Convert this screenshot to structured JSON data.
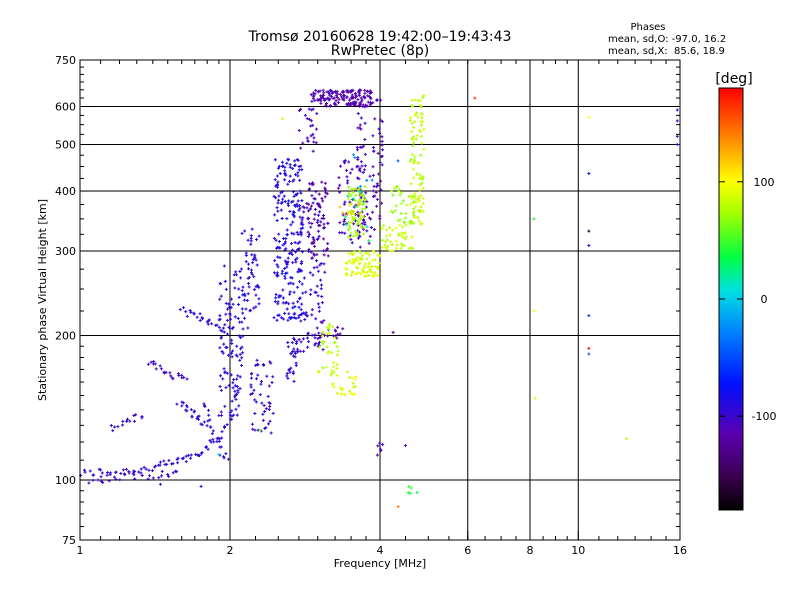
{
  "chart_data": {
    "type": "scatter",
    "title": "Tromsø 20160628 19:42:00–19:43:43",
    "subtitle": "RwPretec (8p)",
    "xlabel": "Frequency [MHz]",
    "ylabel": "Stationary phase Virtual Height [km]",
    "x_scale": "log",
    "y_scale": "log",
    "xlim": [
      1,
      16
    ],
    "ylim": [
      75,
      750
    ],
    "x_major_ticks": [
      1,
      2,
      4,
      6,
      8,
      10,
      16
    ],
    "x_tick_labels": [
      "1",
      "2",
      "4",
      "6",
      "8",
      "10",
      "16"
    ],
    "y_major_ticks": [
      75,
      100,
      200,
      300,
      400,
      500,
      600,
      750
    ],
    "y_tick_labels": [
      "75",
      "100",
      "200",
      "300",
      "400",
      "500",
      "600",
      "750"
    ],
    "grid": true,
    "phases_legend": {
      "title": "Phases",
      "line_o": "mean, sd,O: -97.0, 16.2",
      "line_x": "mean, sd,X:  85.6, 18.9"
    },
    "colorbar": {
      "label": "[deg]",
      "min": -180,
      "max": 180,
      "ticks": [
        100,
        0,
        -100
      ],
      "tick_labels": [
        "100",
        "0",
        "-100"
      ],
      "colormap": "rainbow: black -> purple -> blue -> cyan -> green -> yellow -> orange -> red"
    },
    "point_groups": [
      {
        "kind": "curve",
        "phase": -95,
        "pts": [
          [
            1.0,
            103
          ],
          [
            1.1,
            104
          ],
          [
            1.2,
            104
          ],
          [
            1.3,
            105
          ],
          [
            1.4,
            106
          ],
          [
            1.5,
            108
          ],
          [
            1.6,
            110
          ],
          [
            1.7,
            113
          ],
          [
            1.8,
            117
          ],
          [
            1.9,
            123
          ],
          [
            2.0,
            135
          ],
          [
            2.05,
            150
          ],
          [
            2.1,
            175
          ],
          [
            2.12,
            200
          ],
          [
            2.15,
            240
          ],
          [
            2.2,
            280
          ],
          [
            2.25,
            300
          ]
        ]
      },
      {
        "kind": "curve",
        "phase": -100,
        "pts": [
          [
            1.05,
            100
          ],
          [
            1.15,
            101
          ],
          [
            1.3,
            102
          ],
          [
            1.45,
            103
          ],
          [
            1.6,
            104
          ]
        ]
      },
      {
        "kind": "curve",
        "phase": -98,
        "pts": [
          [
            1.15,
            128
          ],
          [
            1.25,
            132
          ],
          [
            1.35,
            138
          ]
        ]
      },
      {
        "kind": "curve",
        "phase": -100,
        "pts": [
          [
            1.38,
            175
          ],
          [
            1.45,
            170
          ],
          [
            1.55,
            165
          ],
          [
            1.65,
            162
          ]
        ]
      },
      {
        "kind": "curve",
        "phase": -95,
        "pts": [
          [
            1.58,
            145
          ],
          [
            1.65,
            140
          ],
          [
            1.72,
            135
          ],
          [
            1.8,
            130
          ]
        ]
      },
      {
        "kind": "curve",
        "phase": -96,
        "pts": [
          [
            1.6,
            225
          ],
          [
            1.7,
            220
          ],
          [
            1.8,
            215
          ],
          [
            1.9,
            213
          ]
        ]
      },
      {
        "kind": "curve",
        "phase": -97,
        "pts": [
          [
            1.78,
            145
          ],
          [
            1.82,
            130
          ],
          [
            1.9,
            117
          ],
          [
            2.0,
            110
          ]
        ]
      },
      {
        "kind": "cluster",
        "phase": -92,
        "x": [
          1.9,
          2.1
        ],
        "y": [
          135,
          280
        ],
        "n": 90
      },
      {
        "kind": "cluster",
        "phase": -90,
        "x": [
          2.1,
          2.3
        ],
        "y": [
          200,
          340
        ],
        "n": 40
      },
      {
        "kind": "cluster",
        "phase": -98,
        "x": [
          2.2,
          2.45
        ],
        "y": [
          125,
          180
        ],
        "n": 50
      },
      {
        "kind": "cluster",
        "phase": -88,
        "x": [
          2.45,
          2.8
        ],
        "y": [
          215,
          470
        ],
        "n": 220
      },
      {
        "kind": "cluster",
        "phase": -92,
        "x": [
          2.6,
          2.75
        ],
        "y": [
          160,
          200
        ],
        "n": 30
      },
      {
        "kind": "cluster",
        "phase": -100,
        "x": [
          2.75,
          3.1
        ],
        "y": [
          185,
          380
        ],
        "n": 110
      },
      {
        "kind": "cluster",
        "phase": -118,
        "x": [
          2.85,
          3.15
        ],
        "y": [
          280,
          420
        ],
        "n": 60
      },
      {
        "kind": "cluster",
        "phase": -112,
        "x": [
          2.9,
          3.3
        ],
        "y": [
          600,
          650
        ],
        "n": 60
      },
      {
        "kind": "cluster",
        "phase": -115,
        "x": [
          3.3,
          3.85
        ],
        "y": [
          600,
          650
        ],
        "n": 90
      },
      {
        "kind": "cluster",
        "phase": -108,
        "x": [
          2.75,
          3.0
        ],
        "y": [
          480,
          600
        ],
        "n": 25
      },
      {
        "kind": "cluster",
        "phase": -108,
        "x": [
          3.3,
          3.9
        ],
        "y": [
          305,
          470
        ],
        "n": 70
      },
      {
        "kind": "cluster",
        "phase": -105,
        "x": [
          3.6,
          3.75
        ],
        "y": [
          330,
          600
        ],
        "n": 40
      },
      {
        "kind": "cluster",
        "phase": -110,
        "x": [
          3.85,
          4.05
        ],
        "y": [
          350,
          620
        ],
        "n": 40
      },
      {
        "kind": "cluster",
        "phase": -112,
        "x": [
          3.0,
          3.4
        ],
        "y": [
          195,
          215
        ],
        "n": 15
      },
      {
        "kind": "cluster",
        "phase": 88,
        "x": [
          3.4,
          4.0
        ],
        "y": [
          265,
          300
        ],
        "n": 80
      },
      {
        "kind": "cluster",
        "phase": 85,
        "x": [
          4.0,
          4.65
        ],
        "y": [
          300,
          340
        ],
        "n": 45
      },
      {
        "kind": "cluster",
        "phase": 82,
        "x": [
          4.6,
          4.9
        ],
        "y": [
          340,
          420
        ],
        "n": 40
      },
      {
        "kind": "cluster",
        "phase": 80,
        "x": [
          4.6,
          4.9
        ],
        "y": [
          420,
          650
        ],
        "n": 60
      },
      {
        "kind": "cluster",
        "phase": 75,
        "x": [
          3.45,
          3.75
        ],
        "y": [
          320,
          410
        ],
        "n": 70
      },
      {
        "kind": "cluster",
        "phase": 70,
        "x": [
          4.2,
          4.7
        ],
        "y": [
          340,
          410
        ],
        "n": 30
      },
      {
        "kind": "cluster",
        "phase": 80,
        "x": [
          3.0,
          3.3
        ],
        "y": [
          165,
          215
        ],
        "n": 35
      },
      {
        "kind": "cluster",
        "phase": 90,
        "x": [
          3.2,
          3.6
        ],
        "y": [
          150,
          170
        ],
        "n": 25
      },
      {
        "kind": "cluster",
        "phase": 120,
        "x": [
          3.3,
          3.8
        ],
        "y": [
          330,
          380
        ],
        "n": 8
      },
      {
        "kind": "cluster",
        "phase": 20,
        "x": [
          3.4,
          3.8
        ],
        "y": [
          300,
          430
        ],
        "n": 8
      },
      {
        "kind": "cluster",
        "phase": -30,
        "x": [
          3.4,
          4.5
        ],
        "y": [
          400,
          500
        ],
        "n": 6
      },
      {
        "kind": "cluster",
        "phase": -110,
        "x": [
          3.95,
          4.05
        ],
        "y": [
          108,
          120
        ],
        "n": 6
      },
      {
        "kind": "cluster",
        "phase": 40,
        "x": [
          4.55,
          4.8
        ],
        "y": [
          93,
          97
        ],
        "n": 5
      },
      {
        "kind": "points",
        "pts": [
          [
            4.25,
            203,
            -130
          ],
          [
            4.35,
            88,
            140
          ],
          [
            4.5,
            118,
            -110
          ],
          [
            6.2,
            625,
            160
          ],
          [
            8.15,
            350,
            40
          ],
          [
            8.15,
            225,
            100
          ],
          [
            8.2,
            148,
            90
          ],
          [
            10.5,
            570,
            100
          ],
          [
            10.5,
            435,
            -70
          ],
          [
            10.5,
            330,
            -160
          ],
          [
            10.5,
            308,
            -80
          ],
          [
            10.5,
            220,
            -60
          ],
          [
            10.5,
            188,
            170
          ],
          [
            10.5,
            183,
            -40
          ],
          [
            12.5,
            122,
            80
          ],
          [
            15.8,
            590,
            -100
          ],
          [
            15.8,
            560,
            -120
          ],
          [
            15.8,
            520,
            -110
          ],
          [
            15.8,
            500,
            -100
          ],
          [
            2.3,
            127,
            60
          ],
          [
            2.55,
            565,
            90
          ],
          [
            1.75,
            97,
            -100
          ],
          [
            1.45,
            98,
            -100
          ],
          [
            1.9,
            113,
            0
          ]
        ]
      }
    ]
  }
}
